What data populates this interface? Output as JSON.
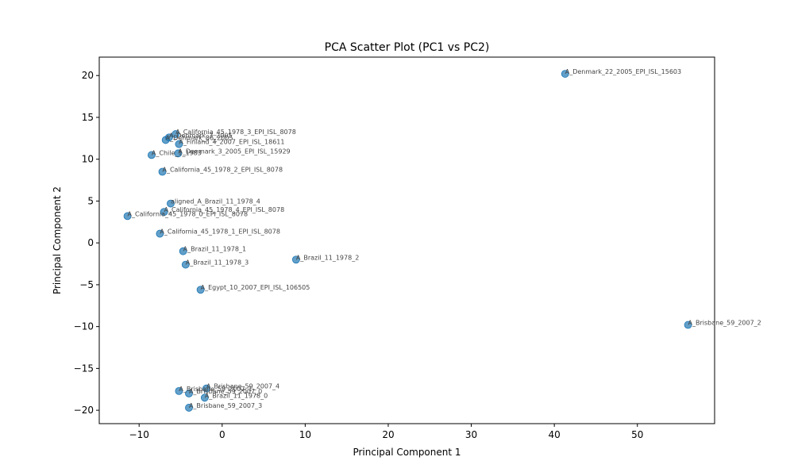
{
  "chart_data": {
    "type": "scatter",
    "title": "PCA Scatter Plot (PC1 vs PC2)",
    "xlabel": "Principal Component 1",
    "ylabel": "Principal Component 2",
    "xlim": [
      -14.8,
      59.3
    ],
    "ylim": [
      -21.6,
      22.2
    ],
    "xticks": [
      -10,
      0,
      10,
      20,
      30,
      40,
      50
    ],
    "yticks": [
      -20,
      -15,
      -10,
      -5,
      0,
      5,
      10,
      15,
      20
    ],
    "grid": false,
    "legend": "none",
    "marker_color": "#1f77b4",
    "points": [
      {
        "label": "A_Denmark_22_2005_EPI_ISL_15603",
        "x": 41.3,
        "y": 20.2
      },
      {
        "label": "A_California_45_1978_3_EPI_ISL_8078",
        "x": -5.6,
        "y": 13.0
      },
      {
        "label": "A_Denmark_3_2005",
        "x": -6.4,
        "y": 12.6
      },
      {
        "label": "A_Denmark_86_2005",
        "x": -6.8,
        "y": 12.3
      },
      {
        "label": "A_Finland_4_2007_EPI_ISL_18611",
        "x": -5.2,
        "y": 11.8
      },
      {
        "label": "A_Denmark_3_2005_EPI_ISL_15929",
        "x": -5.3,
        "y": 10.7
      },
      {
        "label": "A_Chile_1_1983",
        "x": -8.5,
        "y": 10.5
      },
      {
        "label": "A_California_45_1978_2_EPI_ISL_8078",
        "x": -7.2,
        "y": 8.5
      },
      {
        "label": "aligned_A_Brazil_11_1978_4",
        "x": -6.2,
        "y": 4.7
      },
      {
        "label": "A_California_45_1978_4_EPI_ISL_8078",
        "x": -7.0,
        "y": 3.7
      },
      {
        "label": "A_California_45_1978_0_EPI_ISL_8078",
        "x": -11.4,
        "y": 3.2
      },
      {
        "label": "A_California_45_1978_1_EPI_ISL_8078",
        "x": -7.5,
        "y": 1.1
      },
      {
        "label": "A_Brazil_11_1978_1",
        "x": -4.7,
        "y": -1.0
      },
      {
        "label": "A_Brazil_11_1978_3",
        "x": -4.4,
        "y": -2.6
      },
      {
        "label": "A_Brazil_11_1978_2",
        "x": 8.9,
        "y": -2.0
      },
      {
        "label": "A_Egypt_10_2007_EPI_ISL_106505",
        "x": -2.6,
        "y": -5.6
      },
      {
        "label": "A_Brisbane_59_2007_2",
        "x": 56.1,
        "y": -9.8
      },
      {
        "label": "A_Brisbane_59_2007_4",
        "x": -1.9,
        "y": -17.4
      },
      {
        "label": "A_Brisbane_59_2007_1",
        "x": -5.2,
        "y": -17.7
      },
      {
        "label": "A_Brisbane_59_2007_0",
        "x": -4.0,
        "y": -18.0
      },
      {
        "label": "A_Brazil_11_1978_0",
        "x": -2.1,
        "y": -18.5
      },
      {
        "label": "A_Brisbane_59_2007_3",
        "x": -4.0,
        "y": -19.7
      }
    ]
  }
}
